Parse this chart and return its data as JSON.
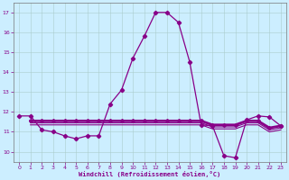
{
  "xlabel": "Windchill (Refroidissement éolien,°C)",
  "xlim": [
    -0.5,
    23.5
  ],
  "ylim": [
    9.5,
    17.5
  ],
  "yticks": [
    10,
    11,
    12,
    13,
    14,
    15,
    16,
    17
  ],
  "xticks": [
    0,
    1,
    2,
    3,
    4,
    5,
    6,
    7,
    8,
    9,
    10,
    11,
    12,
    13,
    14,
    15,
    16,
    17,
    18,
    19,
    20,
    21,
    22,
    23
  ],
  "bg_color": "#cceeff",
  "line_color": "#880088",
  "curve_x": [
    0,
    1,
    2,
    3,
    4,
    5,
    6,
    7,
    8,
    9,
    10,
    11,
    12,
    13,
    14,
    15,
    16,
    17,
    18,
    19,
    20,
    21,
    22,
    23
  ],
  "curve_y": [
    11.8,
    11.8,
    11.1,
    11.0,
    10.8,
    10.65,
    10.8,
    10.8,
    12.4,
    13.1,
    14.7,
    15.8,
    17.0,
    17.0,
    16.5,
    14.5,
    11.35,
    11.3,
    9.8,
    9.7,
    11.6,
    11.8,
    11.75,
    11.3
  ],
  "flat1_x": [
    1,
    2,
    3,
    4,
    5,
    6,
    7,
    8,
    9,
    10,
    11,
    12,
    13,
    14,
    15,
    16,
    17,
    18,
    19,
    20,
    21,
    22,
    23
  ],
  "flat1_y": [
    11.55,
    11.55,
    11.55,
    11.55,
    11.55,
    11.55,
    11.55,
    11.55,
    11.55,
    11.55,
    11.55,
    11.55,
    11.55,
    11.55,
    11.55,
    11.55,
    11.35,
    11.35,
    11.35,
    11.55,
    11.55,
    11.2,
    11.3
  ],
  "flat2_x": [
    1,
    2,
    3,
    4,
    5,
    6,
    7,
    8,
    9,
    10,
    11,
    12,
    13,
    14,
    15,
    16,
    17,
    18,
    19,
    20,
    21,
    22,
    23
  ],
  "flat2_y": [
    11.45,
    11.45,
    11.45,
    11.45,
    11.45,
    11.45,
    11.45,
    11.45,
    11.45,
    11.45,
    11.45,
    11.45,
    11.45,
    11.45,
    11.45,
    11.45,
    11.25,
    11.25,
    11.25,
    11.45,
    11.45,
    11.1,
    11.2
  ],
  "flat3_x": [
    1,
    2,
    3,
    4,
    5,
    6,
    7,
    8,
    9,
    10,
    11,
    12,
    13,
    14,
    15,
    16,
    17,
    18,
    19,
    20,
    21,
    22,
    23
  ],
  "flat3_y": [
    11.35,
    11.35,
    11.35,
    11.35,
    11.35,
    11.35,
    11.35,
    11.35,
    11.35,
    11.35,
    11.35,
    11.35,
    11.35,
    11.35,
    11.35,
    11.35,
    11.15,
    11.15,
    11.15,
    11.35,
    11.35,
    11.0,
    11.1
  ]
}
